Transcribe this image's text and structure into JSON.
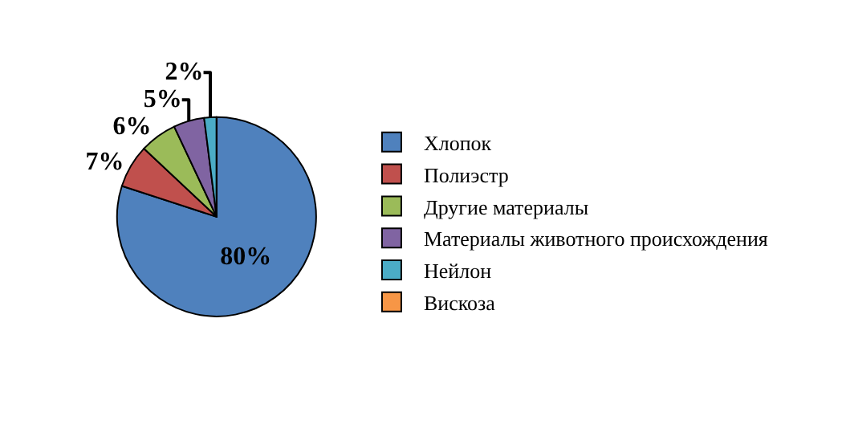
{
  "chart_data": {
    "type": "pie",
    "categories": [
      "Хлопок",
      "Полиэстр",
      "Другие материалы",
      "Материалы животного происхождения",
      "Нейлон",
      "Вискоза"
    ],
    "values": [
      80,
      7,
      6,
      5,
      2,
      0
    ],
    "colors": [
      "#4f81bd",
      "#c0504d",
      "#9bbb59",
      "#8064a2",
      "#4bacc6",
      "#f79646"
    ],
    "value_labels": [
      "80%",
      "7%",
      "6%",
      "5%",
      "2%",
      null
    ],
    "legend": "right"
  }
}
